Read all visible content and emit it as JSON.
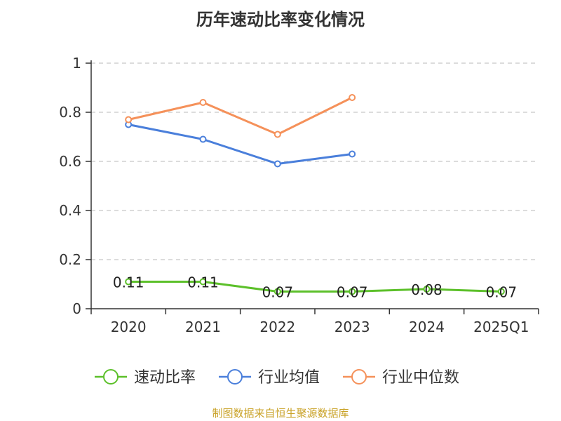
{
  "chart_data": {
    "type": "line",
    "title": "历年速动比率变化情况",
    "categories": [
      "2020",
      "2021",
      "2022",
      "2023",
      "2024",
      "2025Q1"
    ],
    "ylim": [
      0,
      1
    ],
    "yticks": [
      0,
      0.2,
      0.4,
      0.6,
      0.8,
      1
    ],
    "ytick_labels": [
      "0",
      "0.2",
      "0.4",
      "0.6",
      "0.8",
      "1"
    ],
    "grid": true,
    "legend_position": "bottom",
    "series": [
      {
        "name": "速动比率",
        "color": "#5cc02a",
        "values": [
          0.11,
          0.11,
          0.07,
          0.07,
          0.08,
          0.07
        ],
        "labels": [
          "0.11",
          "0.11",
          "0.07",
          "0.07",
          "0.08",
          "0.07"
        ]
      },
      {
        "name": "行业均值",
        "color": "#4a7fdb",
        "values": [
          0.75,
          0.69,
          0.59,
          0.63,
          null,
          null
        ]
      },
      {
        "name": "行业中位数",
        "color": "#f5915a",
        "values": [
          0.77,
          0.84,
          0.71,
          0.86,
          null,
          null
        ]
      }
    ]
  },
  "source": "制图数据来自恒生聚源数据库"
}
